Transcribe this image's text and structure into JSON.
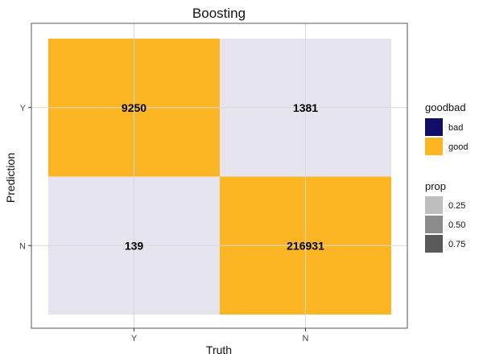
{
  "chart_data": {
    "type": "heatmap",
    "title": "Boosting",
    "xlabel": "Truth",
    "ylabel": "Prediction",
    "x_categories": [
      "Y",
      "N"
    ],
    "y_categories": [
      "Y",
      "N"
    ],
    "cells": [
      {
        "truth": "Y",
        "prediction": "Y",
        "value": 9250,
        "goodbad": "good"
      },
      {
        "truth": "N",
        "prediction": "Y",
        "value": 1381,
        "goodbad": "bad"
      },
      {
        "truth": "Y",
        "prediction": "N",
        "value": 139,
        "goodbad": "bad"
      },
      {
        "truth": "N",
        "prediction": "N",
        "value": 216931,
        "goodbad": "good"
      }
    ],
    "colors": {
      "good": "#FDB623",
      "bad": "#E5E4EF",
      "panel_border": "#555555",
      "grid": "#d9d9d9"
    },
    "legend": {
      "placement": "right",
      "goodbad": {
        "title": "goodbad",
        "entries": [
          {
            "label": "bad",
            "color": "#120E67"
          },
          {
            "label": "good",
            "color": "#FDB623"
          }
        ]
      },
      "prop": {
        "title": "prop",
        "entries": [
          {
            "label": "0.25",
            "color": "#BEBEBE"
          },
          {
            "label": "0.50",
            "color": "#8C8C8C"
          },
          {
            "label": "0.75",
            "color": "#595959"
          }
        ]
      }
    },
    "grid": true
  }
}
